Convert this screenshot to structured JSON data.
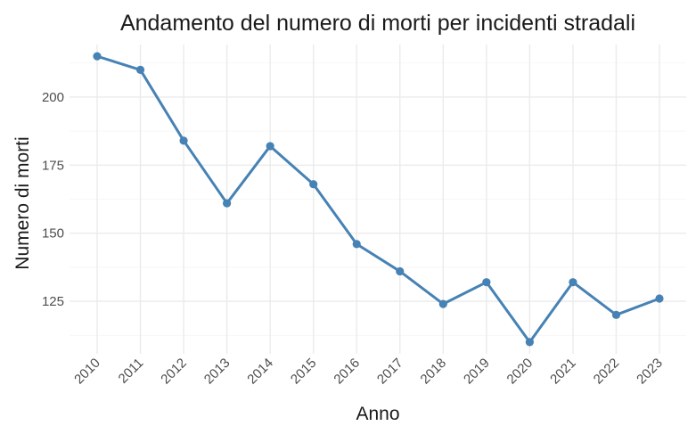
{
  "chart_data": {
    "type": "line",
    "title": "Andamento del numero di morti per incidenti stradali",
    "xlabel": "Anno",
    "ylabel": "Numero di morti",
    "categories": [
      "2010",
      "2011",
      "2012",
      "2013",
      "2014",
      "2015",
      "2016",
      "2017",
      "2018",
      "2019",
      "2020",
      "2021",
      "2022",
      "2023"
    ],
    "values": [
      215,
      210,
      184,
      161,
      182,
      168,
      146,
      136,
      124,
      132,
      110,
      132,
      120,
      126
    ],
    "yticks": [
      125,
      150,
      175,
      200
    ],
    "ylim": [
      105.7,
      219.3
    ],
    "grid": true,
    "legend": "none",
    "colors": {
      "series": "#4682b4"
    }
  }
}
